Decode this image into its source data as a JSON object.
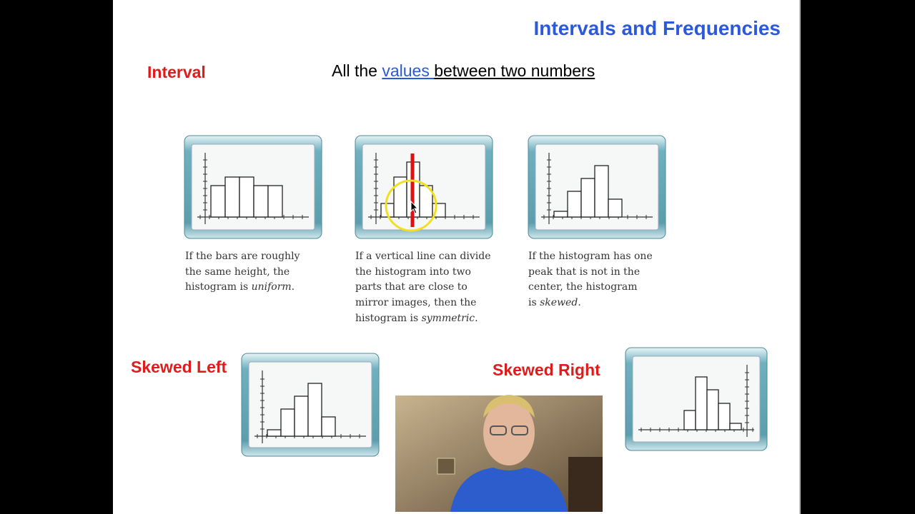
{
  "slide": {
    "title": "Intervals and Frequencies",
    "term": "Interval",
    "definition": {
      "before": "All the ",
      "link": "values ",
      "after": "between two numbers"
    },
    "captions": [
      {
        "lines": [
          "If the bars are roughly",
          "the same height, the",
          "histogram is "
        ],
        "em": "uniform",
        "tail": "."
      },
      {
        "lines": [
          "If a vertical line can divide",
          "the histogram into two",
          "parts that are close to",
          "mirror images, then the",
          "histogram is "
        ],
        "em": "symmetric",
        "tail": "."
      },
      {
        "lines": [
          "If the histogram has one",
          "peak that is not in the",
          "center, the histogram",
          "is "
        ],
        "em": "skewed",
        "tail": "."
      }
    ],
    "skewed_left": "Skewed Left",
    "skewed_right": "Skewed Right"
  }
}
